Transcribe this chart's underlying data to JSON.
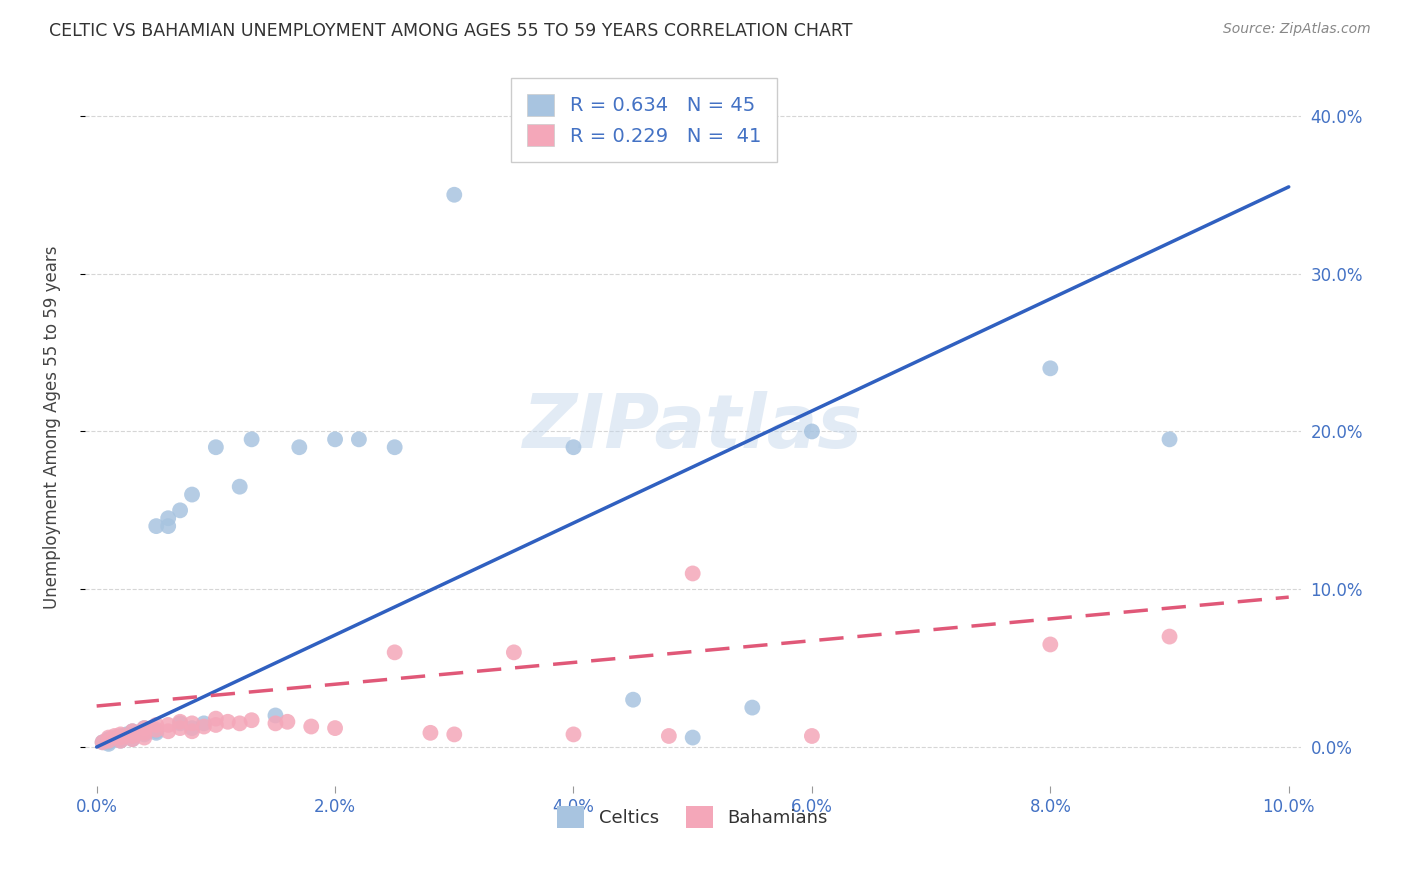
{
  "title": "CELTIC VS BAHAMIAN UNEMPLOYMENT AMONG AGES 55 TO 59 YEARS CORRELATION CHART",
  "source": "Source: ZipAtlas.com",
  "ylabel": "Unemployment Among Ages 55 to 59 years",
  "xlim": [
    0.0,
    0.1
  ],
  "ylim": [
    -0.025,
    0.43
  ],
  "xticks": [
    0.0,
    0.02,
    0.04,
    0.06,
    0.08,
    0.1
  ],
  "yticks": [
    0.0,
    0.1,
    0.2,
    0.3,
    0.4
  ],
  "celtics_color": "#a8c4e0",
  "bahamians_color": "#f4a7b9",
  "celtics_line_color": "#3060c0",
  "bahamians_line_color": "#e05878",
  "watermark": "ZIPatlas",
  "celtics_x": [
    0.0005,
    0.001,
    0.001,
    0.001,
    0.001,
    0.0015,
    0.0015,
    0.002,
    0.002,
    0.002,
    0.0025,
    0.0025,
    0.003,
    0.003,
    0.003,
    0.003,
    0.004,
    0.004,
    0.004,
    0.005,
    0.005,
    0.005,
    0.006,
    0.006,
    0.007,
    0.007,
    0.008,
    0.008,
    0.009,
    0.01,
    0.012,
    0.013,
    0.015,
    0.017,
    0.02,
    0.022,
    0.025,
    0.03,
    0.04,
    0.045,
    0.05,
    0.055,
    0.06,
    0.08,
    0.09
  ],
  "celtics_y": [
    0.003,
    0.005,
    0.004,
    0.003,
    0.002,
    0.006,
    0.005,
    0.007,
    0.005,
    0.004,
    0.008,
    0.007,
    0.01,
    0.008,
    0.007,
    0.005,
    0.012,
    0.01,
    0.008,
    0.14,
    0.01,
    0.009,
    0.145,
    0.14,
    0.15,
    0.015,
    0.16,
    0.012,
    0.015,
    0.19,
    0.165,
    0.195,
    0.02,
    0.19,
    0.195,
    0.195,
    0.19,
    0.35,
    0.19,
    0.03,
    0.006,
    0.025,
    0.2,
    0.24,
    0.195
  ],
  "bahamians_x": [
    0.0005,
    0.001,
    0.001,
    0.0015,
    0.002,
    0.002,
    0.002,
    0.003,
    0.003,
    0.003,
    0.004,
    0.004,
    0.004,
    0.005,
    0.005,
    0.006,
    0.006,
    0.007,
    0.007,
    0.008,
    0.008,
    0.009,
    0.01,
    0.01,
    0.011,
    0.012,
    0.013,
    0.015,
    0.016,
    0.018,
    0.02,
    0.025,
    0.028,
    0.03,
    0.035,
    0.04,
    0.048,
    0.05,
    0.06,
    0.08,
    0.09
  ],
  "bahamians_y": [
    0.003,
    0.006,
    0.004,
    0.007,
    0.008,
    0.006,
    0.004,
    0.01,
    0.007,
    0.005,
    0.012,
    0.009,
    0.006,
    0.014,
    0.011,
    0.014,
    0.01,
    0.016,
    0.012,
    0.015,
    0.01,
    0.013,
    0.018,
    0.014,
    0.016,
    0.015,
    0.017,
    0.015,
    0.016,
    0.013,
    0.012,
    0.06,
    0.009,
    0.008,
    0.06,
    0.008,
    0.007,
    0.11,
    0.007,
    0.065,
    0.07
  ],
  "blue_line_x0": 0.0,
  "blue_line_y0": 0.0,
  "blue_line_x1": 0.1,
  "blue_line_y1": 0.355,
  "pink_line_x0": 0.0,
  "pink_line_y0": 0.026,
  "pink_line_x1": 0.1,
  "pink_line_y1": 0.095
}
